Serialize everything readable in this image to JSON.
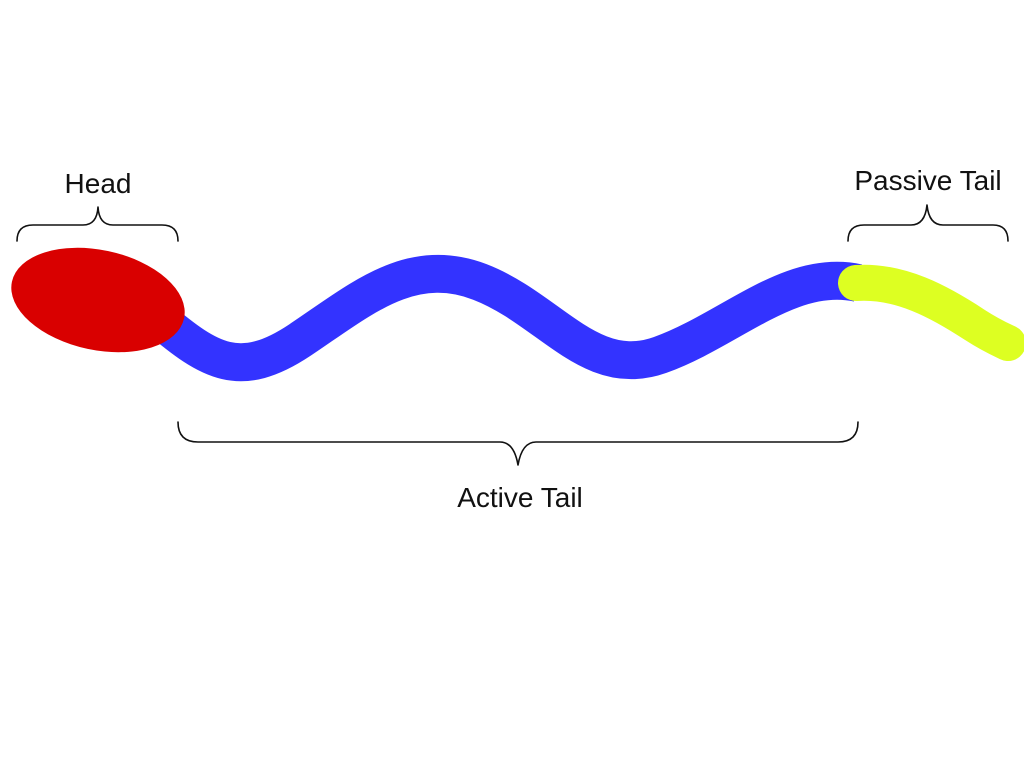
{
  "labels": {
    "head": "Head",
    "passive_tail": "Passive Tail",
    "active_tail": "Active Tail"
  },
  "colors": {
    "background": "#ffffff",
    "head": "#d90000",
    "active_tail": "#3333ff",
    "passive_tail": "#ddff22",
    "text": "#111111"
  }
}
